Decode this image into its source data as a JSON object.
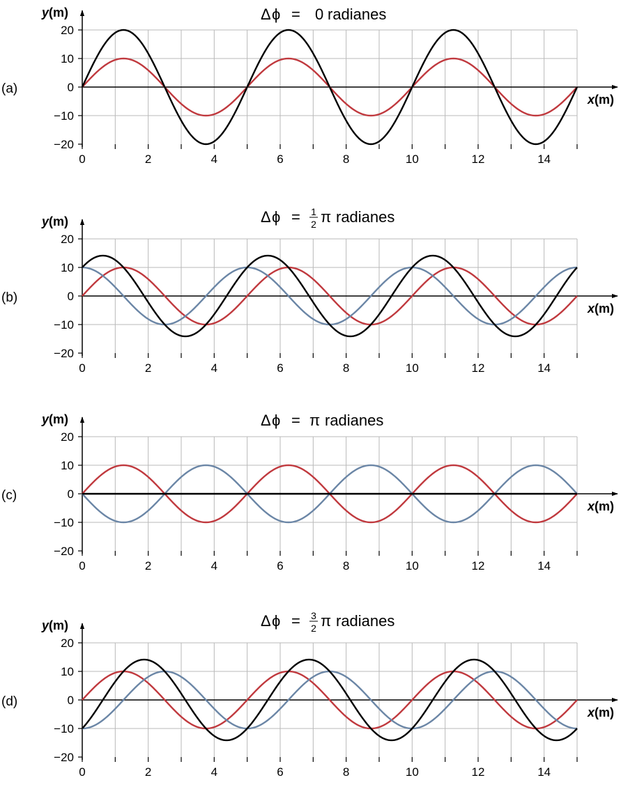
{
  "colors": {
    "red": "#c0393e",
    "blue": "#6b86a6",
    "black": "#000000"
  },
  "panels": [
    {
      "label": "(a)",
      "title": {
        "delta": "Δ",
        "phi": "ϕ",
        "eq": "=",
        "value": "0",
        "frac_num": "",
        "frac_den": "",
        "pi": "",
        "unit": "radianes"
      }
    },
    {
      "label": "(b)",
      "title": {
        "delta": "Δ",
        "phi": "ϕ",
        "eq": "=",
        "value": "",
        "frac_num": "1",
        "frac_den": "2",
        "pi": "π",
        "unit": "radianes"
      }
    },
    {
      "label": "(c)",
      "title": {
        "delta": "Δ",
        "phi": "ϕ",
        "eq": "=",
        "value": "",
        "frac_num": "",
        "frac_den": "",
        "pi": "π",
        "unit": "radianes"
      }
    },
    {
      "label": "(d)",
      "title": {
        "delta": "Δ",
        "phi": "ϕ",
        "eq": "=",
        "value": "",
        "frac_num": "3",
        "frac_den": "2",
        "pi": "π",
        "unit": "radianes"
      }
    }
  ],
  "chart_data": [
    {
      "type": "line",
      "title": "Δϕ = 0 radianes",
      "xlabel": "x(m)",
      "ylabel": "y(m)",
      "xlim": [
        0,
        15
      ],
      "ylim": [
        -20,
        20
      ],
      "x_ticks": [
        "0",
        "2",
        "4",
        "6",
        "8",
        "10",
        "12",
        "14"
      ],
      "y_ticks": [
        "20",
        "10",
        "0",
        "−10",
        "−20"
      ],
      "grid": true,
      "series": [
        {
          "color": "red",
          "amplitude": 10,
          "wavelength": 5,
          "phase": 0
        },
        {
          "color": "black",
          "amplitude": 20,
          "wavelength": 5,
          "phase": 0
        }
      ]
    },
    {
      "type": "line",
      "title": "Δϕ = 1/2 π radianes",
      "xlabel": "x(m)",
      "ylabel": "y(m)",
      "xlim": [
        0,
        15
      ],
      "ylim": [
        -20,
        20
      ],
      "x_ticks": [
        "0",
        "2",
        "4",
        "6",
        "8",
        "10",
        "12",
        "14"
      ],
      "y_ticks": [
        "20",
        "10",
        "0",
        "−10",
        "−20"
      ],
      "grid": true,
      "series": [
        {
          "color": "red",
          "amplitude": 10,
          "wavelength": 5,
          "phase": 0
        },
        {
          "color": "blue",
          "amplitude": 10,
          "wavelength": 5,
          "phase": 1.5708
        },
        {
          "color": "black",
          "amplitude": 14.14,
          "wavelength": 5,
          "phase": 0.7854
        }
      ]
    },
    {
      "type": "line",
      "title": "Δϕ = π radianes",
      "xlabel": "x(m)",
      "ylabel": "y(m)",
      "xlim": [
        0,
        15
      ],
      "ylim": [
        -20,
        20
      ],
      "x_ticks": [
        "0",
        "2",
        "4",
        "6",
        "8",
        "10",
        "12",
        "14"
      ],
      "y_ticks": [
        "20",
        "10",
        "0",
        "−10",
        "−20"
      ],
      "grid": true,
      "series": [
        {
          "color": "red",
          "amplitude": 10,
          "wavelength": 5,
          "phase": 0
        },
        {
          "color": "blue",
          "amplitude": 10,
          "wavelength": 5,
          "phase": 3.1416
        },
        {
          "color": "black",
          "amplitude": 0,
          "wavelength": 5,
          "phase": 0
        }
      ]
    },
    {
      "type": "line",
      "title": "Δϕ = 3/2 π radianes",
      "xlabel": "x(m)",
      "ylabel": "y(m)",
      "xlim": [
        0,
        15
      ],
      "ylim": [
        -20,
        20
      ],
      "x_ticks": [
        "0",
        "2",
        "4",
        "6",
        "8",
        "10",
        "12",
        "14"
      ],
      "y_ticks": [
        "20",
        "10",
        "0",
        "−10",
        "−20"
      ],
      "grid": true,
      "series": [
        {
          "color": "red",
          "amplitude": 10,
          "wavelength": 5,
          "phase": 0
        },
        {
          "color": "blue",
          "amplitude": 10,
          "wavelength": 5,
          "phase": 4.7124
        },
        {
          "color": "black",
          "amplitude": 14.14,
          "wavelength": 5,
          "phase": 5.4978
        }
      ]
    }
  ]
}
